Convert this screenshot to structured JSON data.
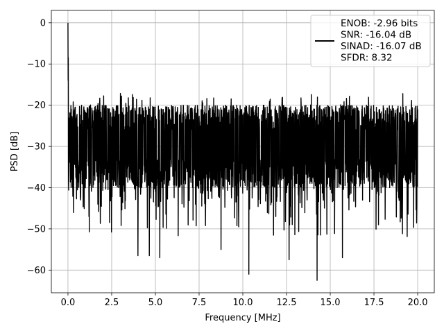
{
  "chart_data": {
    "type": "line",
    "title": "",
    "xlabel": "Frequency [MHz]",
    "ylabel": "PSD [dB]",
    "xlim": [
      -0.95,
      20.95
    ],
    "ylim": [
      -65.5,
      3.0
    ],
    "xticks": [
      0.0,
      2.5,
      5.0,
      7.5,
      10.0,
      12.5,
      15.0,
      17.5,
      20.0
    ],
    "xtick_labels": [
      "0.0",
      "2.5",
      "5.0",
      "7.5",
      "10.0",
      "12.5",
      "15.0",
      "17.5",
      "20.0"
    ],
    "yticks": [
      0,
      -10,
      -20,
      -30,
      -40,
      -50,
      -60
    ],
    "ytick_labels": [
      "0",
      "−10",
      "−20",
      "−30",
      "−40",
      "−50",
      "−60"
    ],
    "grid": true,
    "legend_position": "top-right",
    "series": [
      {
        "legend_lines": [
          "ENOB: -2.96 bits",
          "SNR: -16.04 dB",
          "SINAD: -16.07 dB",
          "SFDR: 8.32"
        ],
        "color": "#000000",
        "x_range": [
          0.0,
          20.0
        ],
        "peak": {
          "x": 0.0,
          "y": 0.0
        },
        "noise_upper": -20.0,
        "noise_lower": -40.0,
        "notable_minima": [
          {
            "x": 4.0,
            "y": -56.5
          },
          {
            "x": 4.65,
            "y": -56.5
          },
          {
            "x": 5.25,
            "y": -57.0
          },
          {
            "x": 8.75,
            "y": -55.0
          },
          {
            "x": 10.35,
            "y": -61.0
          },
          {
            "x": 12.65,
            "y": -57.5
          },
          {
            "x": 14.25,
            "y": -62.5
          },
          {
            "x": 15.7,
            "y": -57.0
          }
        ]
      }
    ]
  }
}
